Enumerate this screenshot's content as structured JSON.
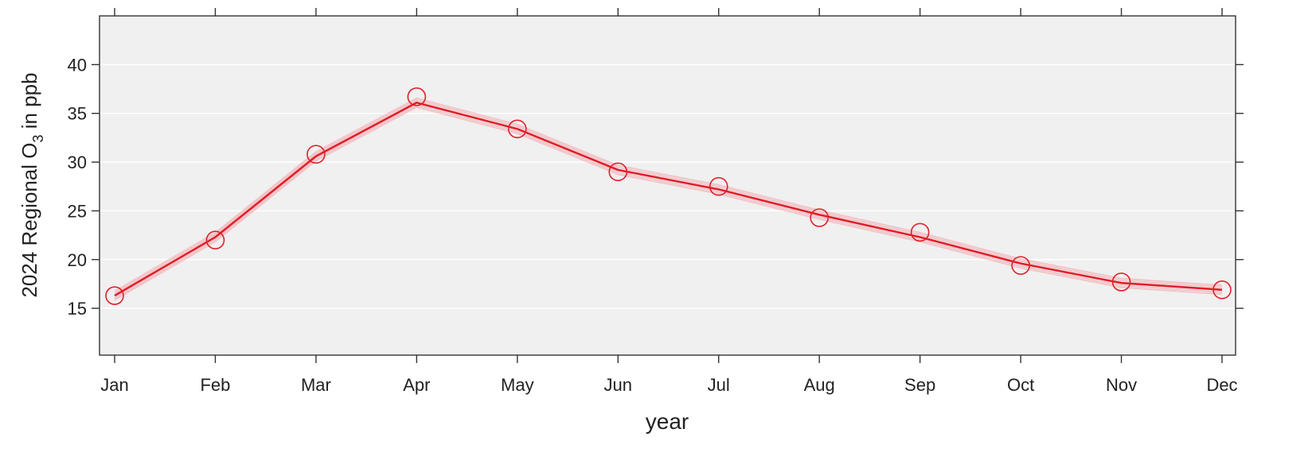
{
  "chart_data": {
    "type": "line",
    "categories": [
      "Jan",
      "Feb",
      "Mar",
      "Apr",
      "May",
      "Jun",
      "Jul",
      "Aug",
      "Sep",
      "Oct",
      "Nov",
      "Dec"
    ],
    "series": [
      {
        "values": [
          16.3,
          22.3,
          30.6,
          36.1,
          33.4,
          29.2,
          27.2,
          24.6,
          22.3,
          19.6,
          17.6,
          16.9
        ],
        "color": "#e0202a",
        "markers": [
          16.3,
          22.0,
          30.8,
          36.7,
          33.4,
          29.0,
          27.5,
          24.3,
          22.8,
          19.4,
          17.7,
          16.9
        ]
      }
    ],
    "xlabel": "year",
    "ylabel": {
      "main": "2024 Regional O",
      "sub": "3",
      "tail": " in ppb"
    },
    "yticks": [
      15,
      20,
      25,
      30,
      35,
      40
    ],
    "ylim": [
      10.2,
      45
    ],
    "grid": true,
    "legend": "none",
    "colors": {
      "panel": "#f0f0f0",
      "grid": "#ffffff",
      "band": "#f4a0a8",
      "line": "#e0202a"
    }
  }
}
